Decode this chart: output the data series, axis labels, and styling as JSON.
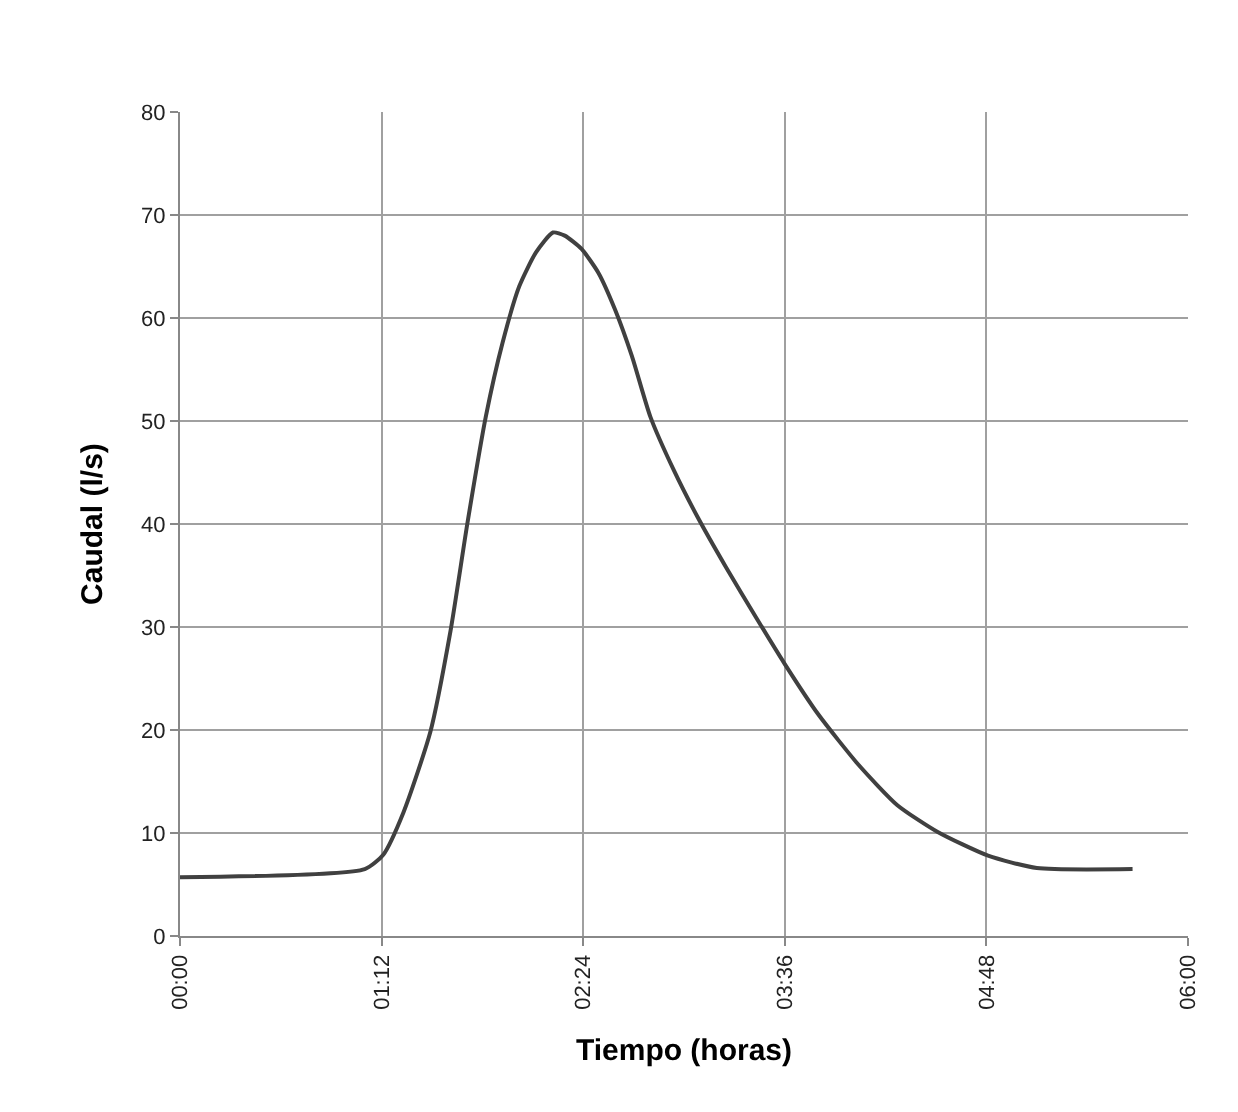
{
  "chart_data": {
    "type": "line",
    "xlabel": "Tiempo (horas)",
    "ylabel": "Caudal (l/s)",
    "x": [
      0,
      1.1,
      1.21,
      1.33,
      1.49,
      1.61,
      1.71,
      1.82,
      1.92,
      2.02,
      2.12,
      2.22,
      2.29,
      2.39,
      2.49,
      2.59,
      2.69,
      2.8,
      2.94,
      3.08,
      3.25,
      3.43,
      3.6,
      3.8,
      4.04,
      4.27,
      4.51,
      4.81,
      5.1,
      5.67
    ],
    "series": [
      {
        "color": "#404040",
        "values": [
          5.7,
          6.5,
          7.9,
          12,
          19.8,
          29.6,
          40,
          50.4,
          57.6,
          63.1,
          66.4,
          68.3,
          68,
          66.7,
          64.4,
          60.8,
          56.3,
          50.4,
          45.2,
          40.7,
          35.8,
          30.9,
          26.4,
          21.5,
          16.6,
          12.7,
          10.1,
          7.8,
          6.6,
          6.5
        ]
      }
    ],
    "xlim": [
      0,
      6
    ],
    "xticks": [
      {
        "value": 0,
        "label": "00:00"
      },
      {
        "value": 1.2,
        "label": "01:12"
      },
      {
        "value": 2.4,
        "label": "02:24"
      },
      {
        "value": 3.6,
        "label": "03:36"
      },
      {
        "value": 4.8,
        "label": "04:48"
      },
      {
        "value": 6,
        "label": "06:00"
      }
    ],
    "ylim": [
      0,
      80
    ],
    "yticks": [
      0,
      10,
      20,
      30,
      40,
      50,
      60,
      70,
      80
    ],
    "grid": true,
    "legend": false,
    "marker": "none",
    "line_style": "solid"
  }
}
